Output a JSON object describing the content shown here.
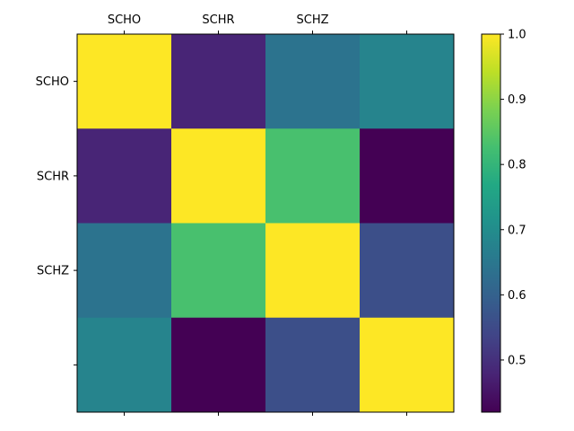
{
  "chart_data": {
    "type": "heatmap",
    "row_labels": [
      "SCHO",
      "SCHR",
      "SCHZ",
      ""
    ],
    "col_labels": [
      "SCHO",
      "SCHR",
      "SCHZ",
      ""
    ],
    "values": [
      [
        1.0,
        0.48,
        0.64,
        0.68
      ],
      [
        0.48,
        1.0,
        0.83,
        0.42
      ],
      [
        0.64,
        0.83,
        1.0,
        0.56
      ],
      [
        0.68,
        0.42,
        0.56,
        1.0
      ]
    ],
    "colorbar": {
      "vmin": 0.42,
      "vmax": 1.0,
      "ticks": [
        "0.5",
        "0.6",
        "0.7",
        "0.8",
        "0.9",
        "1.0"
      ],
      "colormap": "viridis"
    },
    "x_tick_position": "top",
    "grid": false
  }
}
